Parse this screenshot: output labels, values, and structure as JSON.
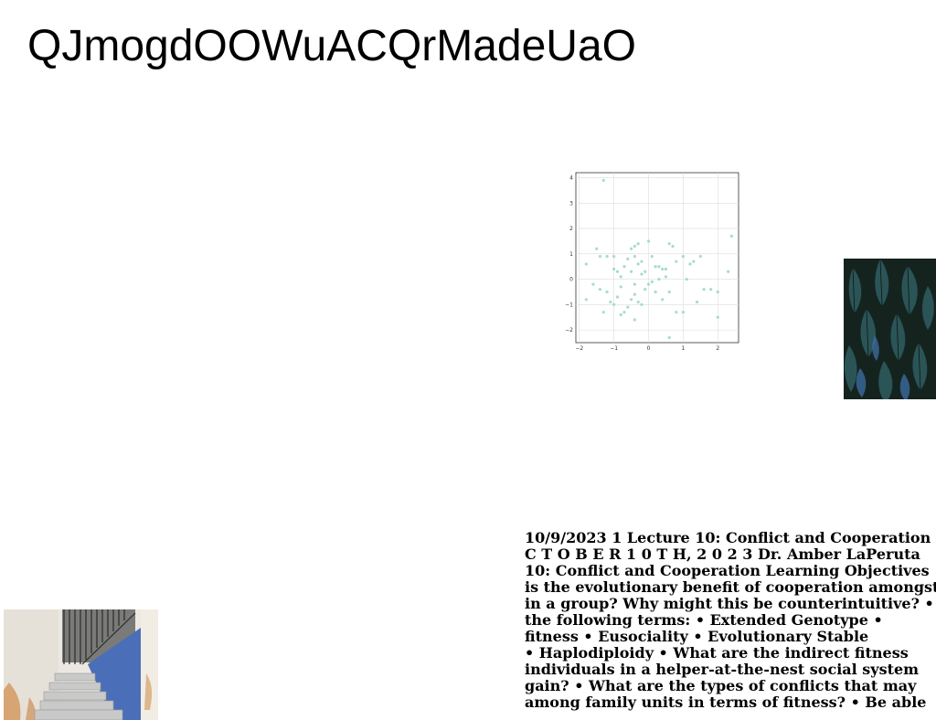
{
  "page": {
    "title": "QJmogdOOWuACQrMadeUaO"
  },
  "scatter": {
    "x_ticks": [
      "−2",
      "−1",
      "0",
      "1",
      "2"
    ],
    "y_ticks": [
      "4",
      "3",
      "2",
      "1",
      "0",
      "−1",
      "−2"
    ],
    "point_color": "#9fd8c8",
    "points": [
      [
        -1.3,
        3.9
      ],
      [
        2.4,
        1.7
      ],
      [
        -1.5,
        1.2
      ],
      [
        -1.4,
        0.9
      ],
      [
        -1.2,
        0.9
      ],
      [
        -1.0,
        0.9
      ],
      [
        -1.8,
        0.6
      ],
      [
        -1.0,
        0.4
      ],
      [
        -0.9,
        0.3
      ],
      [
        -0.8,
        0.1
      ],
      [
        -0.7,
        0.5
      ],
      [
        -0.6,
        0.8
      ],
      [
        -0.5,
        1.2
      ],
      [
        -0.4,
        1.3
      ],
      [
        -0.3,
        1.4
      ],
      [
        -0.4,
        0.9
      ],
      [
        -0.2,
        0.7
      ],
      [
        -0.1,
        0.3
      ],
      [
        0.0,
        1.5
      ],
      [
        0.1,
        0.9
      ],
      [
        0.2,
        0.5
      ],
      [
        0.3,
        0.5
      ],
      [
        0.4,
        0.4
      ],
      [
        0.5,
        0.1
      ],
      [
        0.6,
        1.4
      ],
      [
        0.7,
        1.3
      ],
      [
        0.8,
        0.7
      ],
      [
        1.0,
        0.9
      ],
      [
        1.1,
        0.0
      ],
      [
        1.2,
        0.6
      ],
      [
        1.3,
        0.7
      ],
      [
        1.5,
        0.9
      ],
      [
        1.6,
        -0.4
      ],
      [
        1.8,
        -0.4
      ],
      [
        2.0,
        -0.5
      ],
      [
        2.3,
        0.3
      ],
      [
        -1.6,
        -0.2
      ],
      [
        -1.4,
        -0.4
      ],
      [
        -1.2,
        -0.5
      ],
      [
        -1.1,
        -0.9
      ],
      [
        -0.9,
        -0.7
      ],
      [
        -0.8,
        -1.4
      ],
      [
        -0.7,
        -1.3
      ],
      [
        -0.6,
        -1.1
      ],
      [
        -0.5,
        -0.8
      ],
      [
        -0.4,
        -0.6
      ],
      [
        -0.3,
        -0.9
      ],
      [
        -0.2,
        -1.0
      ],
      [
        -0.1,
        -0.4
      ],
      [
        0.0,
        -0.2
      ],
      [
        0.1,
        -0.1
      ],
      [
        0.2,
        -0.5
      ],
      [
        0.4,
        -0.8
      ],
      [
        0.6,
        -0.5
      ],
      [
        0.8,
        -1.3
      ],
      [
        1.0,
        -1.3
      ],
      [
        0.6,
        -2.3
      ],
      [
        -0.4,
        -1.6
      ],
      [
        2.0,
        -1.5
      ],
      [
        -1.8,
        -0.8
      ],
      [
        -1.0,
        -1.0
      ],
      [
        -0.4,
        -0.2
      ],
      [
        -0.2,
        0.2
      ],
      [
        0.3,
        0.0
      ],
      [
        1.4,
        -0.9
      ],
      [
        -0.5,
        0.3
      ],
      [
        -0.8,
        -0.3
      ],
      [
        -0.3,
        0.6
      ],
      [
        0.5,
        0.4
      ],
      [
        -1.3,
        -1.3
      ]
    ],
    "xlim": [
      -2.1,
      2.6
    ],
    "ylim": [
      -2.5,
      4.2
    ]
  },
  "body_text": {
    "lines": [
      "10/9/2023 1 Lecture 10: Conflict and Cooperation",
      "C T O B E R 1 0 T H, 2 0 2 3 Dr. Amber LaPeruta",
      "10: Conflict and Cooperation Learning Objectives •",
      "is the evolutionary benefit of cooperation amongst",
      "in a group? Why might this be counterintuitive? •",
      "the following terms: • Extended Genotype •",
      "fitness • Eusociality • Evolutionary Stable",
      "• Haplodiploidy • What are the indirect fitness",
      "individuals in a helper-at-the-nest social system",
      "gain? • What are the types of conflicts that may",
      "among family units in terms of fitness? • Be able"
    ]
  }
}
